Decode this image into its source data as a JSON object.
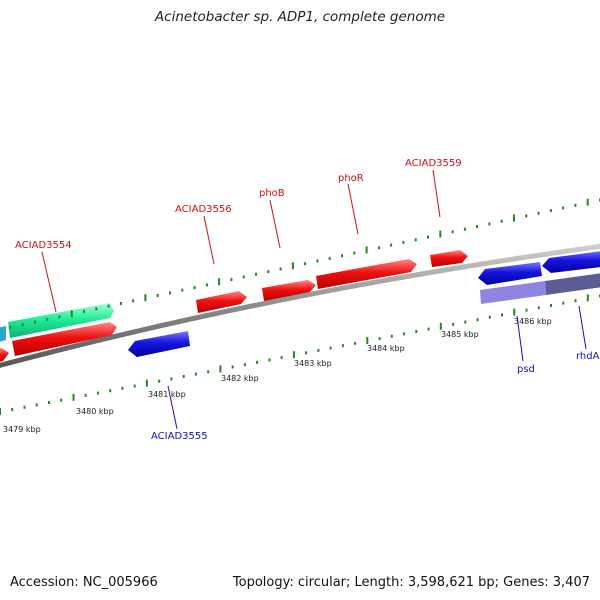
{
  "title": "Acinetobacter sp. ADP1, complete genome",
  "footer": {
    "accession": "Accession: NC_005966",
    "summary": "Topology: circular; Length: 3,598,621 bp; Genes: 3,407"
  },
  "colors": {
    "forward_gene": "#ee1111",
    "reverse_gene": "#1111dd",
    "rrna_gene": "#22ee99",
    "misc_feature": "#7766cc",
    "backbone": "#888888",
    "ticks": "#228822",
    "tick_label": "#222222"
  },
  "kbp_labels": [
    "3479 kbp",
    "3480 kbp",
    "3481 kbp",
    "3482 kbp",
    "3483 kbp",
    "3484 kbp",
    "3485 kbp",
    "3486 kbp"
  ],
  "forward_gene_labels": [
    "ACIAD3554",
    "ACIAD3556",
    "phoB",
    "phoR",
    "ACIAD3559"
  ],
  "reverse_gene_labels": [
    "ACIAD3555",
    "psd",
    "rhdA"
  ]
}
